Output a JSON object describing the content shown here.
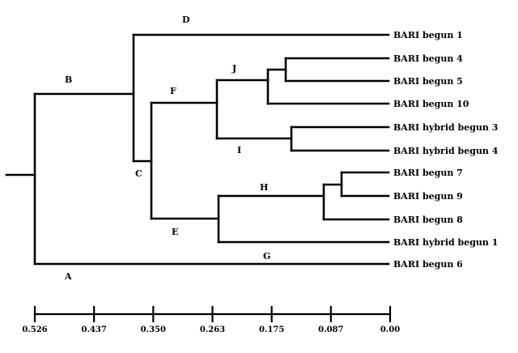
{
  "leaves": {
    "bari_begun_1": "BARI begun 1",
    "bari_begun_4": "BARI begun 4",
    "bari_begun_5": "BARI begun 5",
    "bari_begun_10": "BARI begun 10",
    "bari_hybrid_begun_3": "BARI hybrid begun 3",
    "bari_hybrid_begun_4": "BARI hybrid begun 4",
    "bari_begun_7": "BARI begun 7",
    "bari_begun_9": "BARI begun 9",
    "bari_begun_8": "BARI begun 8",
    "bari_hybrid_begun_1": "BARI hybrid begun 1",
    "bari_begun_6": "BARI begun 6"
  },
  "nodes": {
    "A": "A",
    "B": "B",
    "C": "C",
    "D": "D",
    "E": "E",
    "F": "F",
    "G": "G",
    "H": "H",
    "I": "I",
    "J": "J"
  },
  "axis": {
    "ticks": [
      "0.526",
      "0.437",
      "0.350",
      "0.263",
      "0.175",
      "0.087",
      "0.00"
    ],
    "reversed": true
  },
  "colors": {
    "line": "#000000",
    "background": "#ffffff"
  }
}
